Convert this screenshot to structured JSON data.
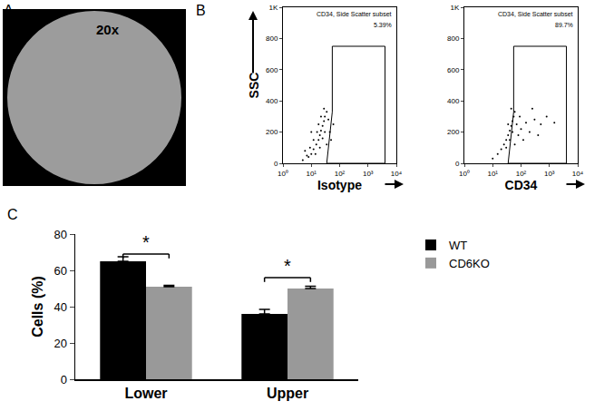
{
  "chart_data": [
    {
      "panel": "A",
      "type": "image",
      "text": "20x"
    },
    {
      "panel": "B",
      "type": "scatter",
      "title": "CD34, Side Scatter subset",
      "annotations": [
        "5.39%"
      ],
      "x_label": "Isotype",
      "y_label": "SSC",
      "log": "x",
      "color": "#000000",
      "marker": "dot",
      "xlim": [
        1,
        10000
      ],
      "xticks": [
        {
          "value": 1,
          "label": "10⁰"
        },
        {
          "value": 10,
          "label": "10¹"
        },
        {
          "value": 100,
          "label": "10²"
        },
        {
          "value": 1000,
          "label": "10³"
        },
        {
          "value": 10000,
          "label": "10⁴"
        }
      ],
      "ylim": [
        0,
        1000
      ],
      "yticks": [
        0,
        200,
        400,
        600,
        800,
        {
          "value": 1000,
          "label": "1K"
        }
      ],
      "x": [
        5,
        8,
        10,
        12,
        15,
        18,
        20,
        22,
        25,
        28,
        30,
        35,
        12,
        9,
        14,
        20,
        25,
        30,
        16,
        18,
        22,
        40,
        45,
        35,
        6,
        10,
        28,
        50,
        60,
        7
      ],
      "y": [
        20,
        40,
        60,
        90,
        120,
        150,
        180,
        210,
        240,
        270,
        300,
        330,
        150,
        100,
        60,
        100,
        160,
        200,
        200,
        250,
        300,
        280,
        200,
        120,
        80,
        200,
        350,
        150,
        250,
        50
      ],
      "gate": {
        "x": [
          35,
          55,
          55,
          4000,
          4000,
          35
        ],
        "y": [
          0,
          330,
          750,
          750,
          0,
          0
        ]
      }
    },
    {
      "type": "scatter",
      "title": "CD34, Side Scatter subset",
      "annotations": [
        "89.7%"
      ],
      "x_label": "CD34",
      "log": "x",
      "color": "#000000",
      "marker": "dot",
      "xlim": [
        1,
        10000
      ],
      "xticks": [
        {
          "value": 1,
          "label": "10⁰"
        },
        {
          "value": 10,
          "label": "10¹"
        },
        {
          "value": 100,
          "label": "10²"
        },
        {
          "value": 1000,
          "label": "10³"
        },
        {
          "value": 10000,
          "label": "10⁴"
        }
      ],
      "ylim": [
        0,
        1000
      ],
      "yticks": [
        0,
        200,
        400,
        600,
        800,
        {
          "value": 1000,
          "label": "1K"
        }
      ],
      "x": [
        10,
        15,
        20,
        25,
        30,
        35,
        40,
        45,
        50,
        55,
        60,
        30,
        40,
        50,
        70,
        80,
        100,
        150,
        200,
        300,
        500,
        800,
        1500,
        60,
        90,
        120,
        400,
        35,
        45,
        250
      ],
      "y": [
        30,
        60,
        90,
        120,
        150,
        180,
        210,
        240,
        270,
        300,
        330,
        100,
        150,
        200,
        250,
        180,
        220,
        260,
        200,
        280,
        250,
        300,
        260,
        120,
        300,
        150,
        180,
        250,
        350,
        350
      ],
      "gate": {
        "x": [
          35,
          55,
          55,
          4000,
          4000,
          35
        ],
        "y": [
          0,
          330,
          750,
          750,
          0,
          0
        ]
      }
    },
    {
      "panel": "C",
      "type": "bar",
      "categories": [
        "Lower",
        "Upper"
      ],
      "y_label": "Cells (%)",
      "ylim": [
        0,
        80
      ],
      "yticks": [
        0,
        20,
        40,
        60,
        80
      ],
      "legend": "upper right",
      "series": [
        {
          "name": "WT",
          "color": "#000000",
          "values": [
            65,
            36
          ],
          "errors": [
            2.5,
            2.5
          ]
        },
        {
          "name": "CD6KO",
          "color": "#999999",
          "values": [
            51,
            50
          ],
          "errors": [
            0.8,
            1.2
          ]
        }
      ],
      "annotations": [
        {
          "text": "*",
          "category": "Lower",
          "y": 69
        },
        {
          "text": "*",
          "category": "Upper",
          "y": 56
        }
      ]
    }
  ]
}
